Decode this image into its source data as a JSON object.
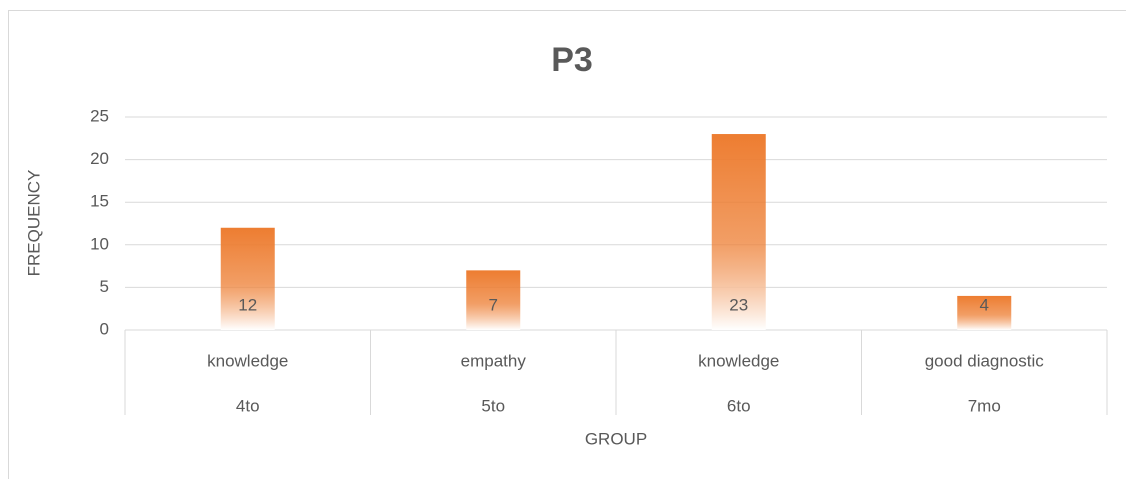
{
  "chart_data": {
    "type": "bar",
    "title": "P3",
    "xlabel": "GROUP",
    "ylabel": "FREQUENCY",
    "categories": [
      "knowledge",
      "empathy",
      "knowledge",
      "good diagnostic"
    ],
    "category_groups": [
      "4to",
      "5to",
      "6to",
      "7mo"
    ],
    "values": [
      12,
      7,
      23,
      4
    ],
    "color": "#ED7D31",
    "ylim": [
      0,
      25
    ],
    "yticks": [
      0,
      5,
      10,
      15,
      20,
      25
    ],
    "grid": true
  }
}
